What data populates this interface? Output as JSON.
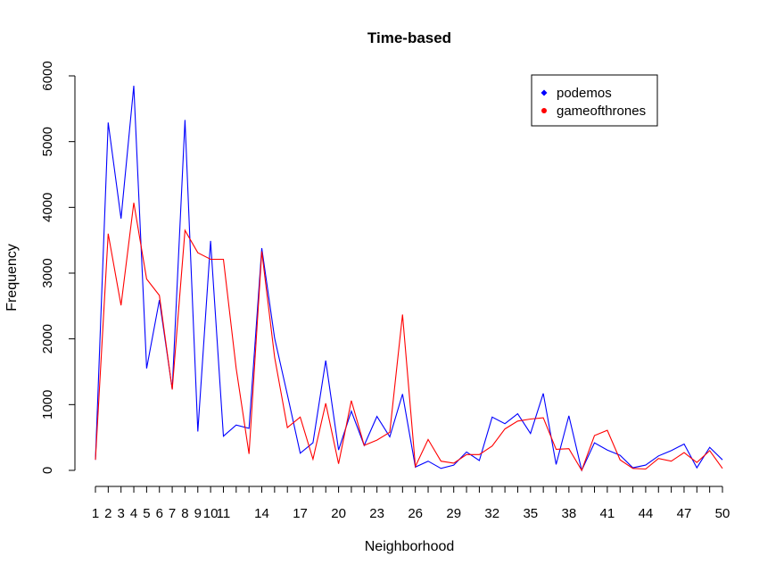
{
  "chart_data": {
    "type": "line",
    "title": "Time-based",
    "xlabel": "Neighborhood",
    "ylabel": "Frequency",
    "xlim": [
      1,
      50
    ],
    "ylim": [
      0,
      6000
    ],
    "x_tick_labels": [
      "1",
      "2",
      "3",
      "4",
      "5",
      "6",
      "7",
      "8",
      "9",
      "10",
      "11",
      "14",
      "17",
      "20",
      "23",
      "26",
      "29",
      "32",
      "35",
      "38",
      "41",
      "44",
      "47",
      "50"
    ],
    "y_tick_labels": [
      "0",
      "1000",
      "2000",
      "3000",
      "4000",
      "5000",
      "6000"
    ],
    "legend": {
      "position": "top-right"
    },
    "series": [
      {
        "name": "podemos",
        "color": "#0000ff",
        "values": [
          160,
          5290,
          3830,
          5850,
          1550,
          2590,
          1240,
          5330,
          590,
          3490,
          520,
          690,
          640,
          3380,
          2010,
          1150,
          260,
          420,
          1670,
          310,
          900,
          380,
          820,
          510,
          1160,
          50,
          140,
          30,
          80,
          280,
          150,
          810,
          710,
          860,
          560,
          1170,
          90,
          830,
          0,
          420,
          310,
          230,
          40,
          80,
          220,
          300,
          400,
          40,
          350,
          160
        ]
      },
      {
        "name": "gameofthrones",
        "color": "#ff0000",
        "values": [
          160,
          3600,
          2510,
          4070,
          2910,
          2660,
          1230,
          3650,
          3310,
          3210,
          3210,
          1550,
          250,
          3330,
          1720,
          650,
          810,
          170,
          1020,
          100,
          1060,
          380,
          460,
          580,
          2370,
          60,
          470,
          140,
          110,
          240,
          240,
          370,
          630,
          750,
          780,
          800,
          320,
          330,
          0,
          530,
          610,
          160,
          30,
          20,
          180,
          140,
          270,
          120,
          300,
          30
        ]
      }
    ]
  }
}
